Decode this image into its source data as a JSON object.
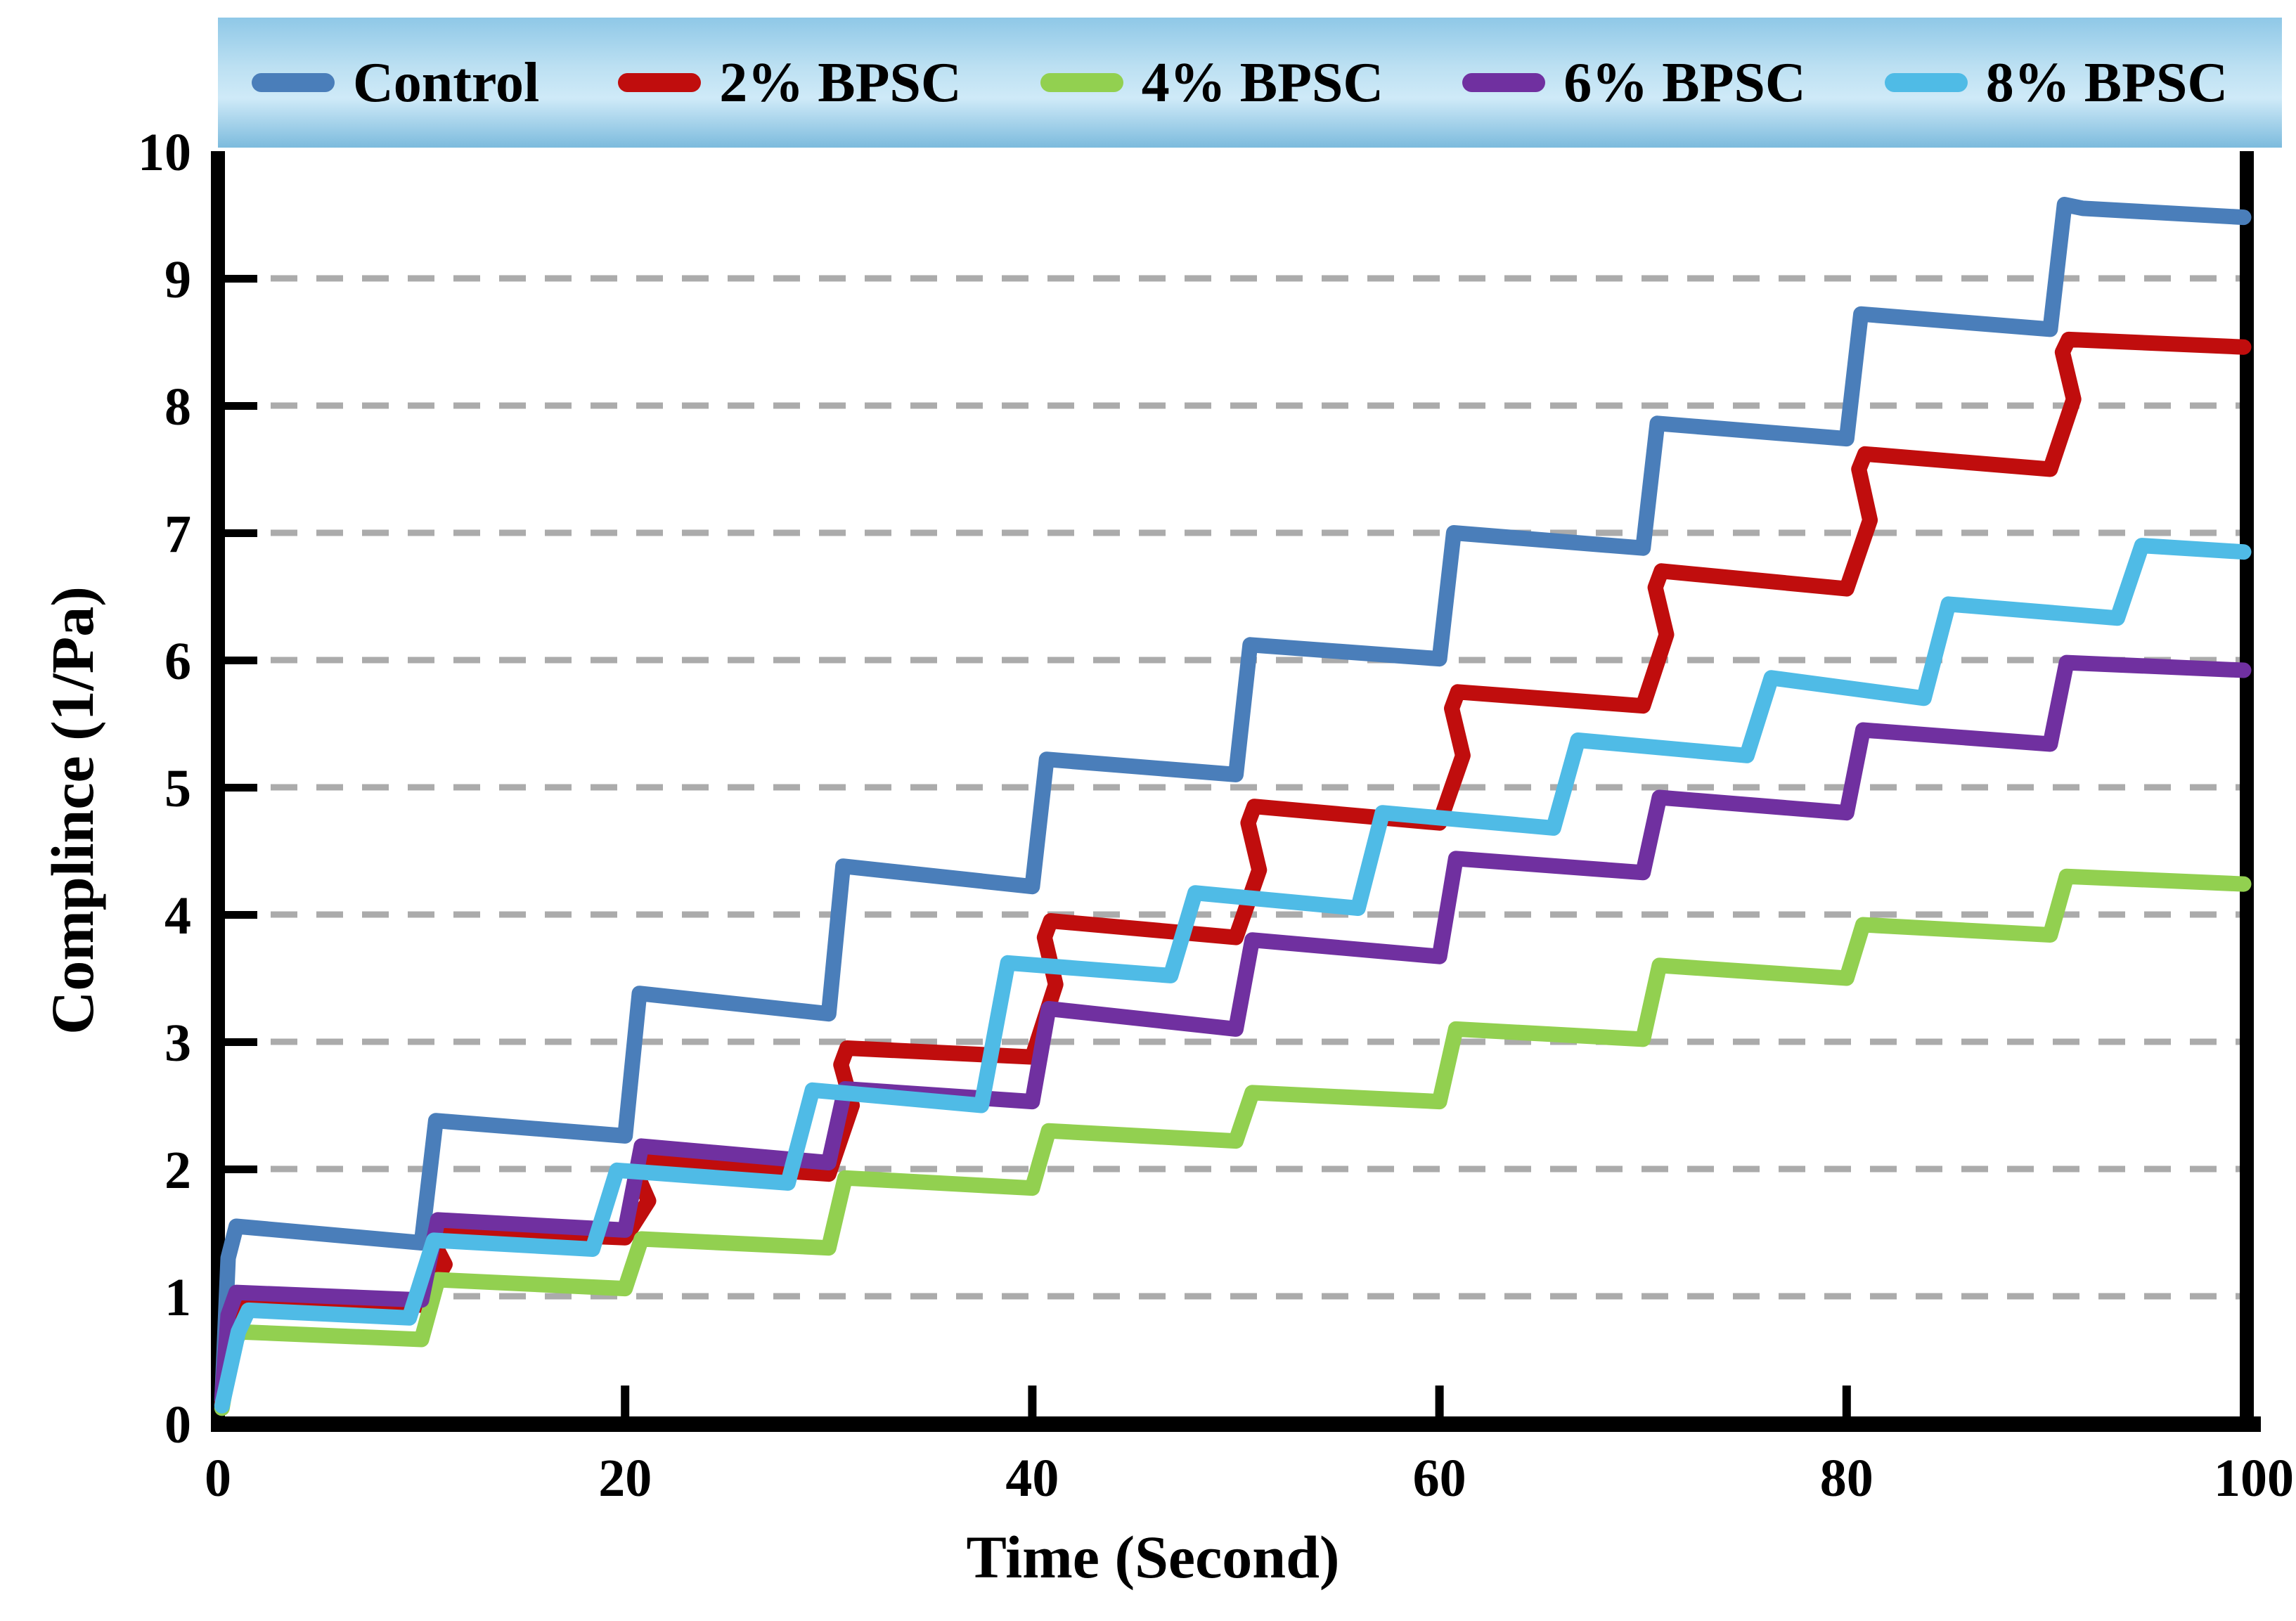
{
  "figure": {
    "background": "#ffffff"
  },
  "axes": {
    "x_title": "Time (Second)",
    "y_title": "Complince (1/Pa)",
    "x_ticks": [
      0,
      20,
      40,
      60,
      80,
      100
    ],
    "y_ticks": [
      0,
      1,
      2,
      3,
      4,
      5,
      6,
      7,
      8,
      9,
      10
    ],
    "spine_color": "#000000",
    "grid_color": "#ABABAB"
  },
  "legend": {
    "band_gradient": [
      "#8FC8E7",
      "#BCE0F2",
      "#CFEAF8",
      "#7CBBDD"
    ]
  },
  "chart_data": {
    "type": "line",
    "title": "",
    "xlabel": "Time (Second)",
    "ylabel": "Complince (1/Pa)",
    "xlim": [
      0,
      100
    ],
    "ylim": [
      0,
      10
    ],
    "grid": "horizontal dashed gridlines at y = 1..9",
    "legend_position": "top band",
    "description": "Creep-recovery compliance staircase curves; each series steps up every ~10 s with a fast rise, small overshoot peak, then a slowly declining plateau.",
    "series": [
      {
        "name": "Control",
        "color": "#4A7EBA",
        "points": [
          [
            0.2,
            0.18
          ],
          [
            0.5,
            1.3
          ],
          [
            0.9,
            1.55
          ],
          [
            10,
            1.42
          ],
          [
            10.7,
            2.38
          ],
          [
            20,
            2.26
          ],
          [
            20.7,
            3.38
          ],
          [
            30,
            3.22
          ],
          [
            30.7,
            4.38
          ],
          [
            40,
            4.22
          ],
          [
            40.7,
            5.22
          ],
          [
            50,
            5.1
          ],
          [
            50.7,
            6.12
          ],
          [
            60,
            6.01
          ],
          [
            60.7,
            7.0
          ],
          [
            70,
            6.88
          ],
          [
            70.7,
            7.86
          ],
          [
            80,
            7.74
          ],
          [
            80.7,
            8.72
          ],
          [
            90,
            8.6
          ],
          [
            90.7,
            9.58
          ],
          [
            91.6,
            9.55
          ],
          [
            99.5,
            9.48
          ]
        ]
      },
      {
        "name": "2% BPSC",
        "color": "#C00D0D",
        "points": [
          [
            0.2,
            0.15
          ],
          [
            0.6,
            0.8
          ],
          [
            1.0,
            1.0
          ],
          [
            10,
            0.93
          ],
          [
            11.15,
            1.25
          ],
          [
            10.6,
            1.42
          ],
          [
            10.9,
            1.52
          ],
          [
            20,
            1.46
          ],
          [
            21.15,
            1.75
          ],
          [
            20.6,
            1.95
          ],
          [
            20.9,
            2.06
          ],
          [
            30,
            1.96
          ],
          [
            31.15,
            2.5
          ],
          [
            30.6,
            2.82
          ],
          [
            30.9,
            2.95
          ],
          [
            40,
            2.88
          ],
          [
            41.15,
            3.45
          ],
          [
            40.6,
            3.82
          ],
          [
            40.9,
            3.95
          ],
          [
            50,
            3.82
          ],
          [
            51.15,
            4.35
          ],
          [
            50.6,
            4.72
          ],
          [
            50.9,
            4.85
          ],
          [
            60,
            4.72
          ],
          [
            61.15,
            5.25
          ],
          [
            60.6,
            5.62
          ],
          [
            60.9,
            5.75
          ],
          [
            70,
            5.64
          ],
          [
            71.15,
            6.2
          ],
          [
            70.6,
            6.57
          ],
          [
            70.9,
            6.7
          ],
          [
            80,
            6.56
          ],
          [
            81.15,
            7.1
          ],
          [
            80.6,
            7.5
          ],
          [
            80.9,
            7.62
          ],
          [
            90,
            7.5
          ],
          [
            91.15,
            8.05
          ],
          [
            90.6,
            8.42
          ],
          [
            90.9,
            8.52
          ],
          [
            99.5,
            8.46
          ]
        ]
      },
      {
        "name": "4% BPSC",
        "color": "#92D050",
        "points": [
          [
            0.2,
            0.12
          ],
          [
            0.7,
            0.6
          ],
          [
            1.1,
            0.72
          ],
          [
            10,
            0.66
          ],
          [
            10.8,
            1.13
          ],
          [
            20,
            1.06
          ],
          [
            20.8,
            1.45
          ],
          [
            30,
            1.38
          ],
          [
            30.8,
            1.93
          ],
          [
            40,
            1.85
          ],
          [
            40.8,
            2.3
          ],
          [
            50,
            2.22
          ],
          [
            50.8,
            2.6
          ],
          [
            60,
            2.53
          ],
          [
            60.8,
            3.1
          ],
          [
            70,
            3.02
          ],
          [
            70.8,
            3.6
          ],
          [
            80,
            3.5
          ],
          [
            80.8,
            3.92
          ],
          [
            90,
            3.84
          ],
          [
            90.8,
            4.3
          ],
          [
            99.5,
            4.24
          ]
        ]
      },
      {
        "name": "6% BPSC",
        "color": "#7030A0",
        "points": [
          [
            0.2,
            0.2
          ],
          [
            0.5,
            0.85
          ],
          [
            0.9,
            1.03
          ],
          [
            10,
            0.97
          ],
          [
            10.8,
            1.6
          ],
          [
            20,
            1.52
          ],
          [
            20.8,
            2.18
          ],
          [
            30,
            2.05
          ],
          [
            30.8,
            2.63
          ],
          [
            40,
            2.53
          ],
          [
            40.8,
            3.26
          ],
          [
            50,
            3.1
          ],
          [
            50.8,
            3.8
          ],
          [
            60,
            3.67
          ],
          [
            60.8,
            4.44
          ],
          [
            70,
            4.33
          ],
          [
            70.8,
            4.92
          ],
          [
            80,
            4.8
          ],
          [
            80.8,
            5.45
          ],
          [
            90,
            5.34
          ],
          [
            90.8,
            5.98
          ],
          [
            99.5,
            5.92
          ]
        ]
      },
      {
        "name": "8% BPSC",
        "color": "#4FBBE6",
        "points": [
          [
            0.2,
            0.14
          ],
          [
            1.0,
            0.72
          ],
          [
            1.5,
            0.89
          ],
          [
            9.4,
            0.83
          ],
          [
            10.6,
            1.44
          ],
          [
            18.4,
            1.37
          ],
          [
            19.6,
            1.99
          ],
          [
            28,
            1.89
          ],
          [
            29.2,
            2.62
          ],
          [
            37.5,
            2.5
          ],
          [
            38.8,
            3.62
          ],
          [
            46.8,
            3.52
          ],
          [
            48.0,
            4.17
          ],
          [
            56.0,
            4.05
          ],
          [
            57.2,
            4.8
          ],
          [
            65.6,
            4.68
          ],
          [
            66.8,
            5.37
          ],
          [
            75.1,
            5.25
          ],
          [
            76.3,
            5.86
          ],
          [
            83.8,
            5.7
          ],
          [
            85.0,
            6.44
          ],
          [
            93.3,
            6.33
          ],
          [
            94.5,
            6.9
          ],
          [
            99.5,
            6.85
          ]
        ]
      }
    ]
  }
}
